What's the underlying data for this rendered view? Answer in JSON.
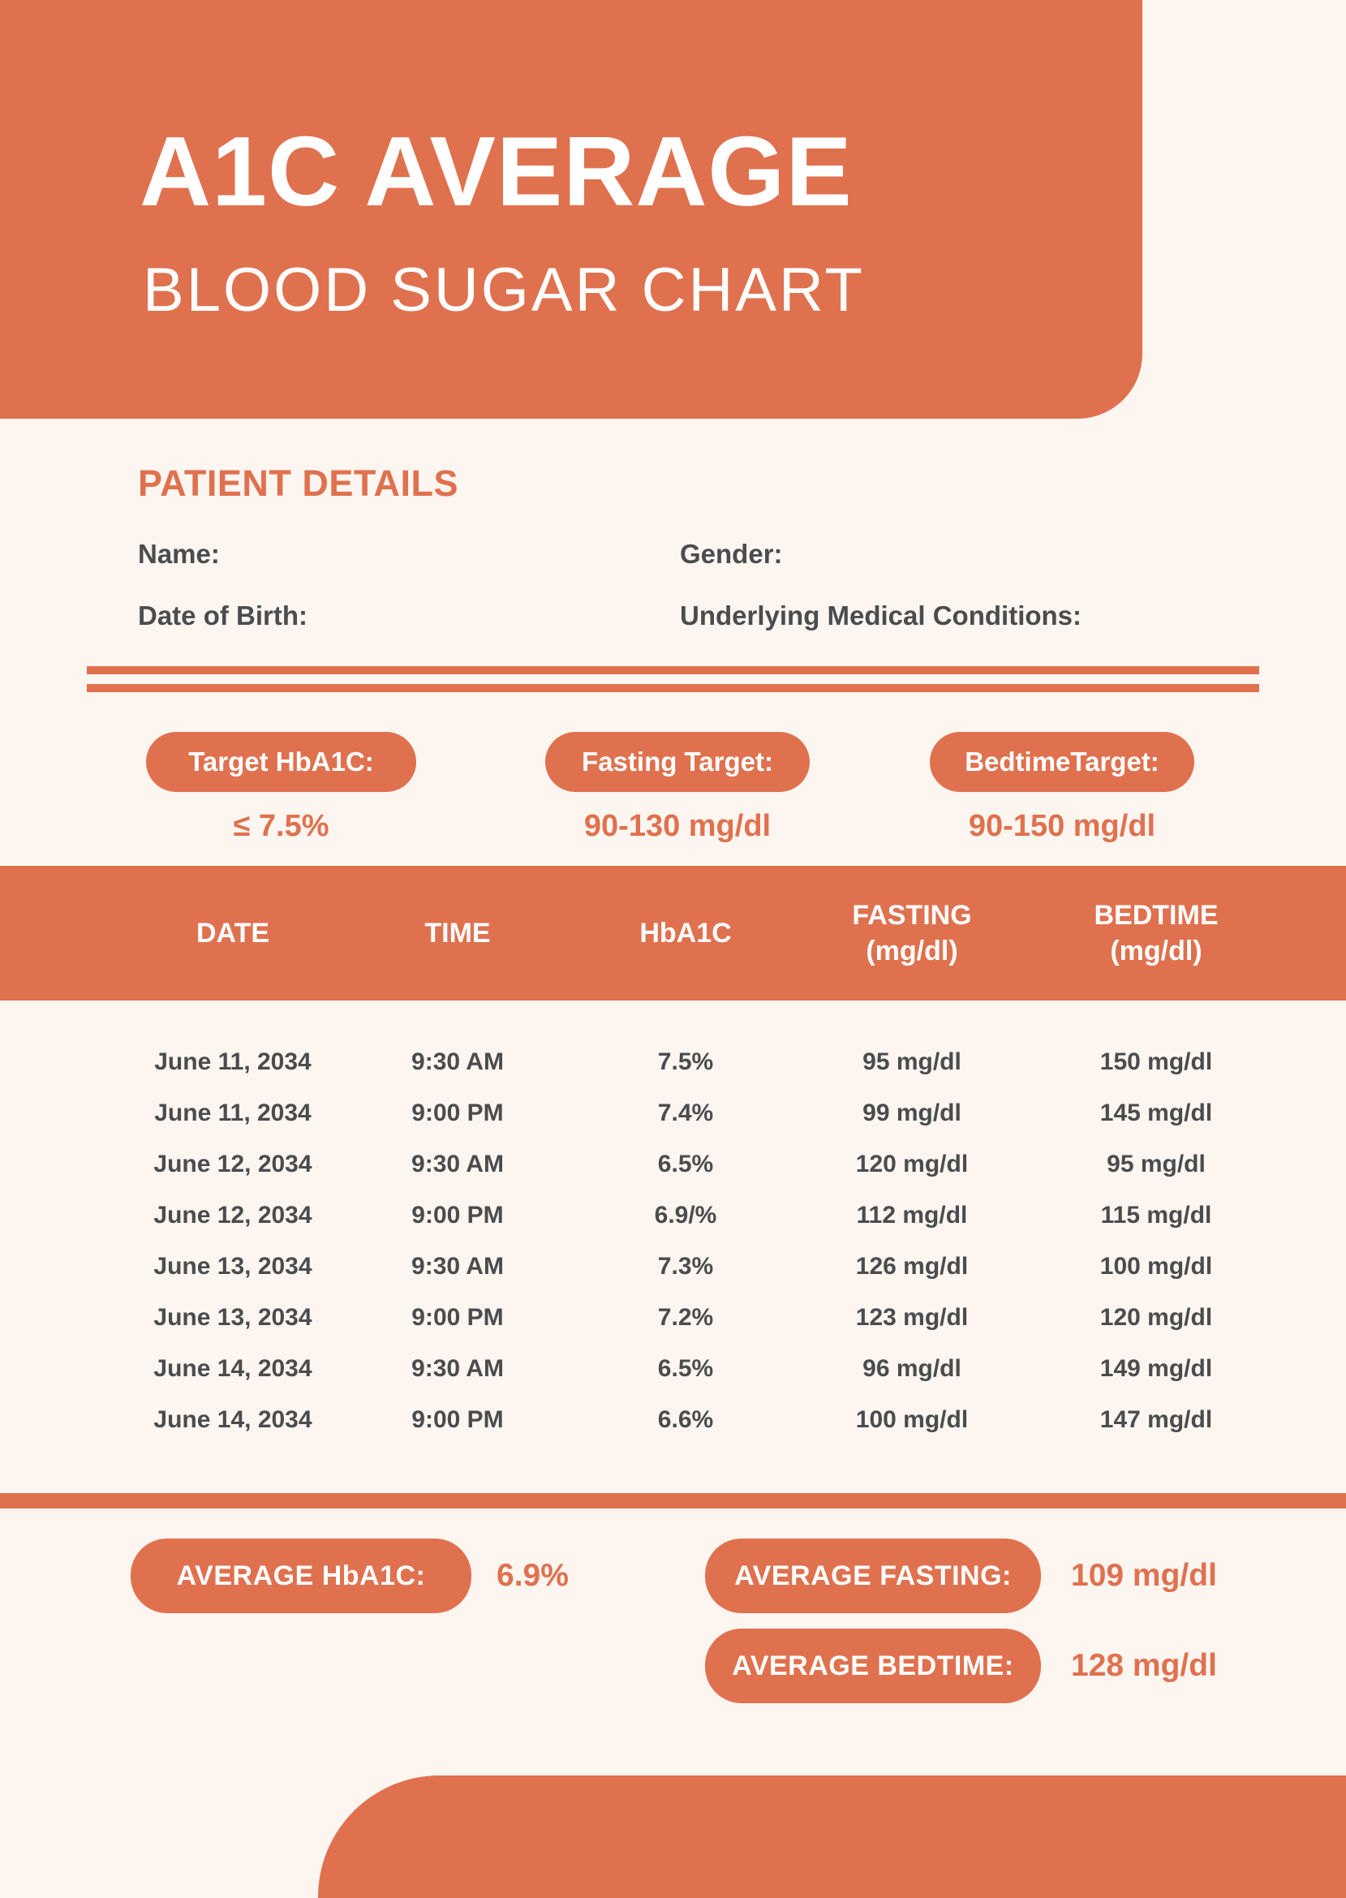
{
  "colors": {
    "accent_orange": "#E0714E",
    "background_cream": "#FCF5F0",
    "text_dark": "#4B4C4E",
    "text_white": "#FFFFFF"
  },
  "header": {
    "title": "A1C AVERAGE",
    "subtitle": "BLOOD SUGAR CHART"
  },
  "patient_details": {
    "heading": "PATIENT DETAILS",
    "name_label": "Name:",
    "gender_label": "Gender:",
    "dob_label": "Date of Birth:",
    "conditions_label": "Underlying Medical Conditions:"
  },
  "targets": {
    "hba1c": {
      "label": "Target HbA1C:",
      "value": "≤ 7.5%"
    },
    "fasting": {
      "label": "Fasting Target:",
      "value": "90-130 mg/dl"
    },
    "bedtime": {
      "label": "BedtimeTarget:",
      "value": "90-150 mg/dl"
    }
  },
  "table": {
    "columns": [
      {
        "line1": "DATE",
        "line2": ""
      },
      {
        "line1": "TIME",
        "line2": ""
      },
      {
        "line1": "HbA1C",
        "line2": ""
      },
      {
        "line1": "FASTING",
        "line2": "(mg/dl)"
      },
      {
        "line1": "BEDTIME",
        "line2": "(mg/dl)"
      }
    ],
    "rows": [
      {
        "date": "June 11, 2034",
        "time": "9:30 AM",
        "hba1c": "7.5%",
        "fasting": "95 mg/dl",
        "bedtime": "150 mg/dl"
      },
      {
        "date": "June 11, 2034",
        "time": "9:00 PM",
        "hba1c": "7.4%",
        "fasting": "99 mg/dl",
        "bedtime": "145 mg/dl"
      },
      {
        "date": "June 12, 2034",
        "time": "9:30 AM",
        "hba1c": "6.5%",
        "fasting": "120 mg/dl",
        "bedtime": "95 mg/dl"
      },
      {
        "date": "June 12, 2034",
        "time": "9:00 PM",
        "hba1c": "6.9/%",
        "fasting": "112 mg/dl",
        "bedtime": "115 mg/dl"
      },
      {
        "date": "June 13, 2034",
        "time": "9:30 AM",
        "hba1c": "7.3%",
        "fasting": "126 mg/dl",
        "bedtime": "100 mg/dl"
      },
      {
        "date": "June 13, 2034",
        "time": "9:00 PM",
        "hba1c": "7.2%",
        "fasting": "123 mg/dl",
        "bedtime": "120 mg/dl"
      },
      {
        "date": "June 14, 2034",
        "time": "9:30 AM",
        "hba1c": "6.5%",
        "fasting": "96 mg/dl",
        "bedtime": "149 mg/dl"
      },
      {
        "date": "June 14, 2034",
        "time": "9:00 PM",
        "hba1c": "6.6%",
        "fasting": "100 mg/dl",
        "bedtime": "147 mg/dl"
      }
    ]
  },
  "averages": {
    "hba1c": {
      "label": "AVERAGE HbA1C:",
      "value": "6.9%"
    },
    "fasting": {
      "label": "AVERAGE FASTING:",
      "value": "109 mg/dl"
    },
    "bedtime": {
      "label": "AVERAGE BEDTIME:",
      "value": "128 mg/dl"
    }
  }
}
